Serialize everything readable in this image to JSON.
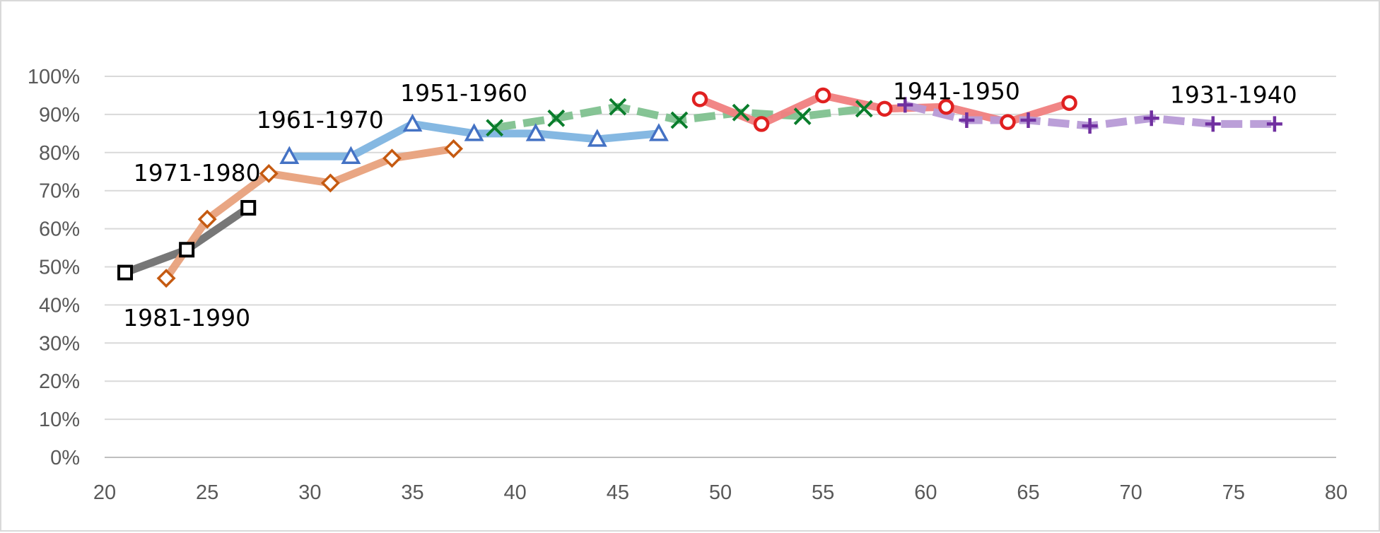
{
  "chart_data": {
    "type": "line",
    "xlim": [
      20,
      80
    ],
    "ylim": [
      0,
      100
    ],
    "x_ticks": [
      "20",
      "25",
      "30",
      "35",
      "40",
      "45",
      "50",
      "55",
      "60",
      "65",
      "70",
      "75",
      "80"
    ],
    "y_ticks": [
      "0%",
      "10%",
      "20%",
      "30%",
      "40%",
      "50%",
      "60%",
      "70%",
      "80%",
      "90%",
      "100%"
    ],
    "grid": "horizontal",
    "series": [
      {
        "name": "1981-1990",
        "color": "#707070",
        "marker_color": "#000000",
        "marker": "square",
        "x": [
          21,
          24,
          27
        ],
        "y": [
          48.5,
          54.5,
          65.5
        ]
      },
      {
        "name": "1971-1980",
        "color": "#e8a17c",
        "marker_color": "#c55a11",
        "marker": "diamond",
        "x": [
          23,
          25,
          28,
          31,
          34,
          37
        ],
        "y": [
          47,
          62.5,
          74.5,
          72,
          78.5,
          81
        ]
      },
      {
        "name": "1961-1970",
        "color": "#7eb4e0",
        "marker_color": "#4472c4",
        "marker": "triangle",
        "x": [
          29,
          32,
          35,
          38,
          41,
          44,
          47
        ],
        "y": [
          79,
          79,
          87.5,
          85,
          85,
          83.5,
          85
        ]
      },
      {
        "name": "1951-1960",
        "color": "#7fc18f",
        "marker_color": "#0a7d2c",
        "marker": "x",
        "dashed": true,
        "x": [
          39,
          42,
          45,
          48,
          51,
          54,
          57
        ],
        "y": [
          86.5,
          89,
          92,
          88.5,
          90.5,
          89.5,
          91.5
        ]
      },
      {
        "name": "1941-1950",
        "color": "#f08080",
        "marker_color": "#e02020",
        "marker": "circle",
        "x": [
          49,
          52,
          55,
          58,
          61,
          64,
          67
        ],
        "y": [
          94,
          87.5,
          95,
          91.5,
          92,
          88,
          93
        ]
      },
      {
        "name": "1931-1940",
        "color": "#b79ad6",
        "marker_color": "#7030a0",
        "marker": "plus",
        "dashed": true,
        "x": [
          59,
          62,
          65,
          68,
          71,
          74,
          77
        ],
        "y": [
          92.5,
          88.5,
          88.5,
          87,
          89,
          87.5,
          87.5
        ]
      }
    ]
  }
}
